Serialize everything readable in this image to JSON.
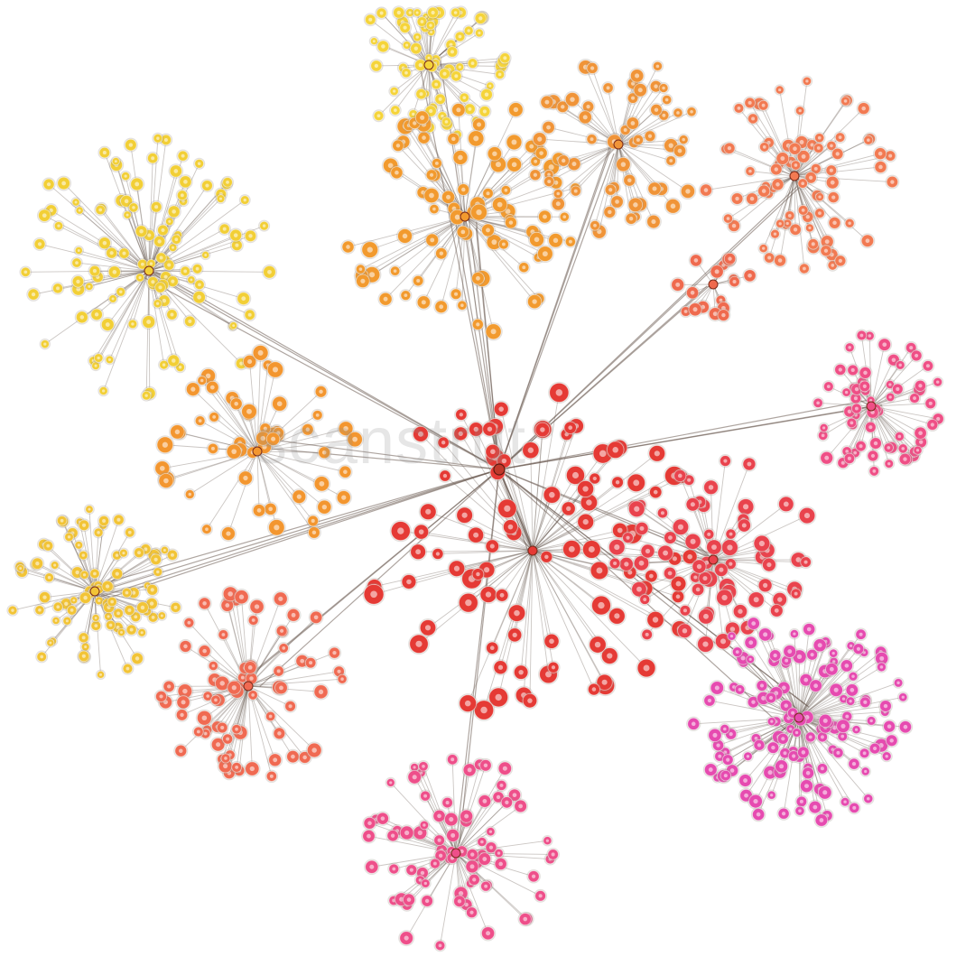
{
  "diagram": {
    "type": "radial-cluster-network",
    "background": "#ffffff",
    "edge_color": "#6b5b52",
    "hub_color": "#c0392b",
    "watermark_text": "scanstrut",
    "clusters": [
      {
        "id": "yellow-top",
        "color": "#f5d43a",
        "count": 70
      },
      {
        "id": "yellow-upper-left",
        "color": "#f2cf36",
        "count": 110
      },
      {
        "id": "yellow-left",
        "color": "#f2c436",
        "count": 90
      },
      {
        "id": "orange-top-center",
        "color": "#f29a2e",
        "count": 85
      },
      {
        "id": "orange-top-right",
        "color": "#f09438",
        "count": 60
      },
      {
        "id": "salmon-upper-right",
        "color": "#f27a52",
        "count": 80
      },
      {
        "id": "salmon-small",
        "color": "#ef6a4e",
        "count": 18
      },
      {
        "id": "orange-left",
        "color": "#f3962f",
        "count": 55
      },
      {
        "id": "salmon-lower-left",
        "color": "#f06a52",
        "count": 75
      },
      {
        "id": "pink-right",
        "color": "#ef4f86",
        "count": 65
      },
      {
        "id": "red-center",
        "color": "#e53a35",
        "count": 95
      },
      {
        "id": "red-right",
        "color": "#e9434d",
        "count": 70
      },
      {
        "id": "magenta-lower-right",
        "color": "#e64bb0",
        "count": 140
      },
      {
        "id": "pink-bottom",
        "color": "#ee4f8a",
        "count": 80
      }
    ]
  }
}
